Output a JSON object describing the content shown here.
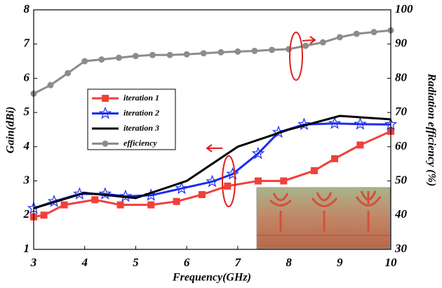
{
  "chart_data": {
    "type": "line",
    "xlabel": "Frequency(GHz)",
    "ylabel": "Gain(dBi)",
    "y2label": "Radiation efficiency (%)",
    "xlim": [
      3,
      10
    ],
    "xticks": [
      3,
      4,
      5,
      6,
      7,
      8,
      9,
      10
    ],
    "ylim": [
      1,
      8
    ],
    "yticks": [
      1,
      2,
      3,
      4,
      5,
      6,
      7,
      8
    ],
    "y2lim": [
      30,
      100
    ],
    "y2ticks": [
      30,
      40,
      50,
      60,
      70,
      80,
      90,
      100
    ],
    "series": [
      {
        "name": "iteration 1",
        "color": "#f0403c",
        "marker": "square",
        "x": [
          3,
          3.2,
          3.6,
          4.2,
          4.7,
          5.3,
          5.8,
          6.3,
          6.8,
          7.4,
          7.9,
          8.5,
          8.9,
          9.4,
          10
        ],
        "values": [
          1.95,
          2.0,
          2.3,
          2.45,
          2.3,
          2.3,
          2.4,
          2.6,
          2.85,
          3.0,
          3.0,
          3.3,
          3.65,
          4.05,
          4.45
        ]
      },
      {
        "name": "iteration 2",
        "color": "#1a2cf0",
        "marker": "star",
        "x": [
          3,
          3.4,
          3.9,
          4.4,
          4.8,
          5.3,
          5.9,
          6.5,
          6.9,
          7.4,
          7.8,
          8.3,
          8.9,
          9.4,
          10
        ],
        "values": [
          2.2,
          2.4,
          2.62,
          2.62,
          2.55,
          2.58,
          2.78,
          2.98,
          3.2,
          3.8,
          4.42,
          4.65,
          4.68,
          4.66,
          4.65
        ]
      },
      {
        "name": "iteration 3",
        "color": "#000000",
        "marker": "none",
        "x": [
          3,
          4,
          5,
          6,
          7,
          8,
          9,
          10
        ],
        "values": [
          2.2,
          2.65,
          2.5,
          3.0,
          4.0,
          4.5,
          4.9,
          4.8
        ]
      },
      {
        "name": "efficiency",
        "color": "#8c8c8c",
        "marker": "circle",
        "axis": "y2",
        "x": [
          3,
          3.33,
          3.67,
          4,
          4.33,
          4.67,
          5,
          5.33,
          5.67,
          6,
          6.33,
          6.67,
          7,
          7.33,
          7.67,
          8,
          8.33,
          8.67,
          9,
          9.33,
          9.67,
          10
        ],
        "values": [
          75.5,
          78,
          81.5,
          85,
          85.5,
          86,
          86.5,
          86.8,
          86.8,
          87,
          87.3,
          87.6,
          87.8,
          88,
          88.3,
          88.5,
          89.5,
          90.5,
          92,
          93,
          93.5,
          94
        ]
      }
    ]
  }
}
